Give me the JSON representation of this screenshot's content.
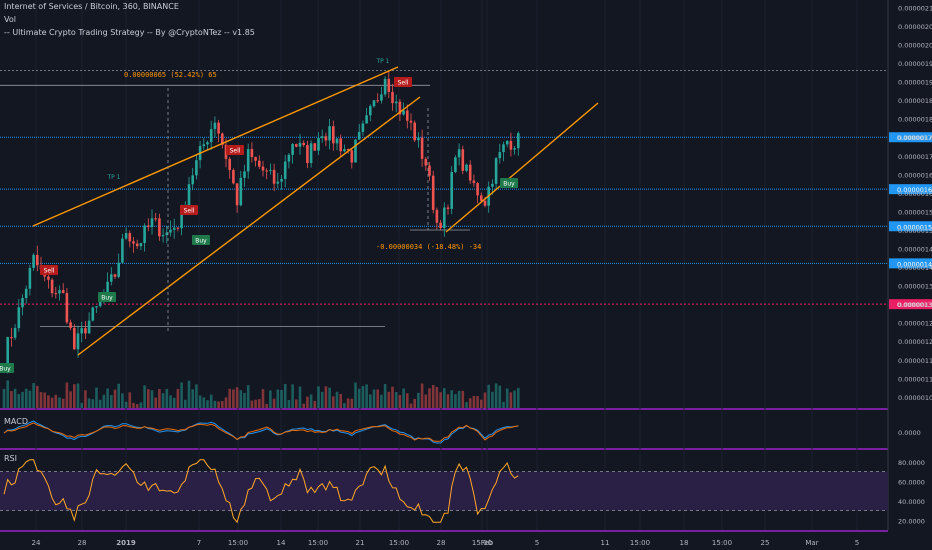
{
  "header": {
    "symbol_line": "Internet of Services / Bitcoin, 360, BINANCE",
    "vol_label": "Vol",
    "strategy_line": "-- Ultimate Crypto Trading Strategy -- By @CryptoNTez -- v1.85"
  },
  "panes": {
    "macd_label": "MACD",
    "rsi_label": "RSI"
  },
  "chart_data": [
    {
      "type": "candlestick",
      "price_axis": {
        "range": [
          1.02e-06,
          2.12e-06
        ],
        "ticks": [
          "0.00000105",
          "0.00000110",
          "0.00000115",
          "0.00000120",
          "0.00000125",
          "0.00000130",
          "0.00000135",
          "0.00000140",
          "0.00000145",
          "0.00000150",
          "0.00000155",
          "0.00000160",
          "0.00000165",
          "0.00000170",
          "0.00000175",
          "0.00000180",
          "0.00000185",
          "0.00000190",
          "0.00000195",
          "0.00000200",
          "0.00000205",
          "0.00000210"
        ]
      },
      "time_axis": {
        "ticks": [
          "24",
          "28",
          "2019",
          "7",
          "15:00",
          "14",
          "15:00",
          "21",
          "15:00",
          "28",
          "15:00",
          "Feb",
          "5",
          "11",
          "15:00",
          "18",
          "15:00",
          "25",
          "Mar",
          "5"
        ]
      },
      "price_badges": [
        {
          "value": "0.00000175",
          "color": "#2196f3"
        },
        {
          "value": "0.00000161",
          "color": "#2196f3"
        },
        {
          "value": "0.00000151",
          "color": "#2196f3"
        },
        {
          "value": "0.00000141",
          "color": "#2196f3"
        },
        {
          "value": "0.00000130",
          "color": "#e91e63"
        }
      ],
      "measures": [
        {
          "text": "0.00000065 (52.42%) 65"
        },
        {
          "text": "-0.00000034 (-18.48%) -34"
        }
      ],
      "signals": [
        {
          "label": "Buy",
          "kind": "buy"
        },
        {
          "label": "Buy",
          "kind": "buy"
        },
        {
          "label": "Buy",
          "kind": "buy"
        },
        {
          "label": "Buy",
          "kind": "buy"
        },
        {
          "label": "Sell",
          "kind": "sell"
        },
        {
          "label": "Sell",
          "kind": "sell"
        },
        {
          "label": "Sell",
          "kind": "sell"
        },
        {
          "label": "Sell",
          "kind": "sell"
        },
        {
          "label": "TP 1",
          "kind": "tp"
        },
        {
          "label": "TP 1",
          "kind": "tp"
        }
      ],
      "price_anchors": [
        [
          0,
          1.16
        ],
        [
          4,
          1.28
        ],
        [
          8,
          1.42
        ],
        [
          12,
          1.35
        ],
        [
          16,
          1.32
        ],
        [
          19,
          1.18
        ],
        [
          22,
          1.24
        ],
        [
          26,
          1.3
        ],
        [
          30,
          1.38
        ],
        [
          33,
          1.5
        ],
        [
          36,
          1.46
        ],
        [
          40,
          1.52
        ],
        [
          44,
          1.49
        ],
        [
          48,
          1.53
        ],
        [
          50,
          1.63
        ],
        [
          54,
          1.73
        ],
        [
          57,
          1.8
        ],
        [
          60,
          1.7
        ],
        [
          63,
          1.58
        ],
        [
          66,
          1.7
        ],
        [
          70,
          1.66
        ],
        [
          74,
          1.62
        ],
        [
          78,
          1.74
        ],
        [
          82,
          1.7
        ],
        [
          86,
          1.77
        ],
        [
          90,
          1.74
        ],
        [
          94,
          1.7
        ],
        [
          98,
          1.79
        ],
        [
          101,
          1.86
        ],
        [
          103,
          1.92
        ],
        [
          106,
          1.84
        ],
        [
          110,
          1.78
        ],
        [
          114,
          1.68
        ],
        [
          117,
          1.52
        ],
        [
          120,
          1.55
        ],
        [
          122,
          1.72
        ],
        [
          126,
          1.63
        ],
        [
          130,
          1.58
        ],
        [
          133,
          1.68
        ],
        [
          136,
          1.74
        ],
        [
          139,
          1.74
        ]
      ],
      "candle_count": 140
    },
    {
      "type": "bar",
      "name": "Vol",
      "note": "volume histogram under price pane"
    },
    {
      "type": "line",
      "name": "MACD",
      "axis_ticks": [
        "0.0000"
      ]
    },
    {
      "type": "line",
      "name": "RSI",
      "ylim": [
        10,
        90
      ],
      "axis_ticks": [
        "80.0000",
        "60.0000",
        "40.0000",
        "20.0000"
      ],
      "bands": [
        70,
        30
      ]
    }
  ]
}
